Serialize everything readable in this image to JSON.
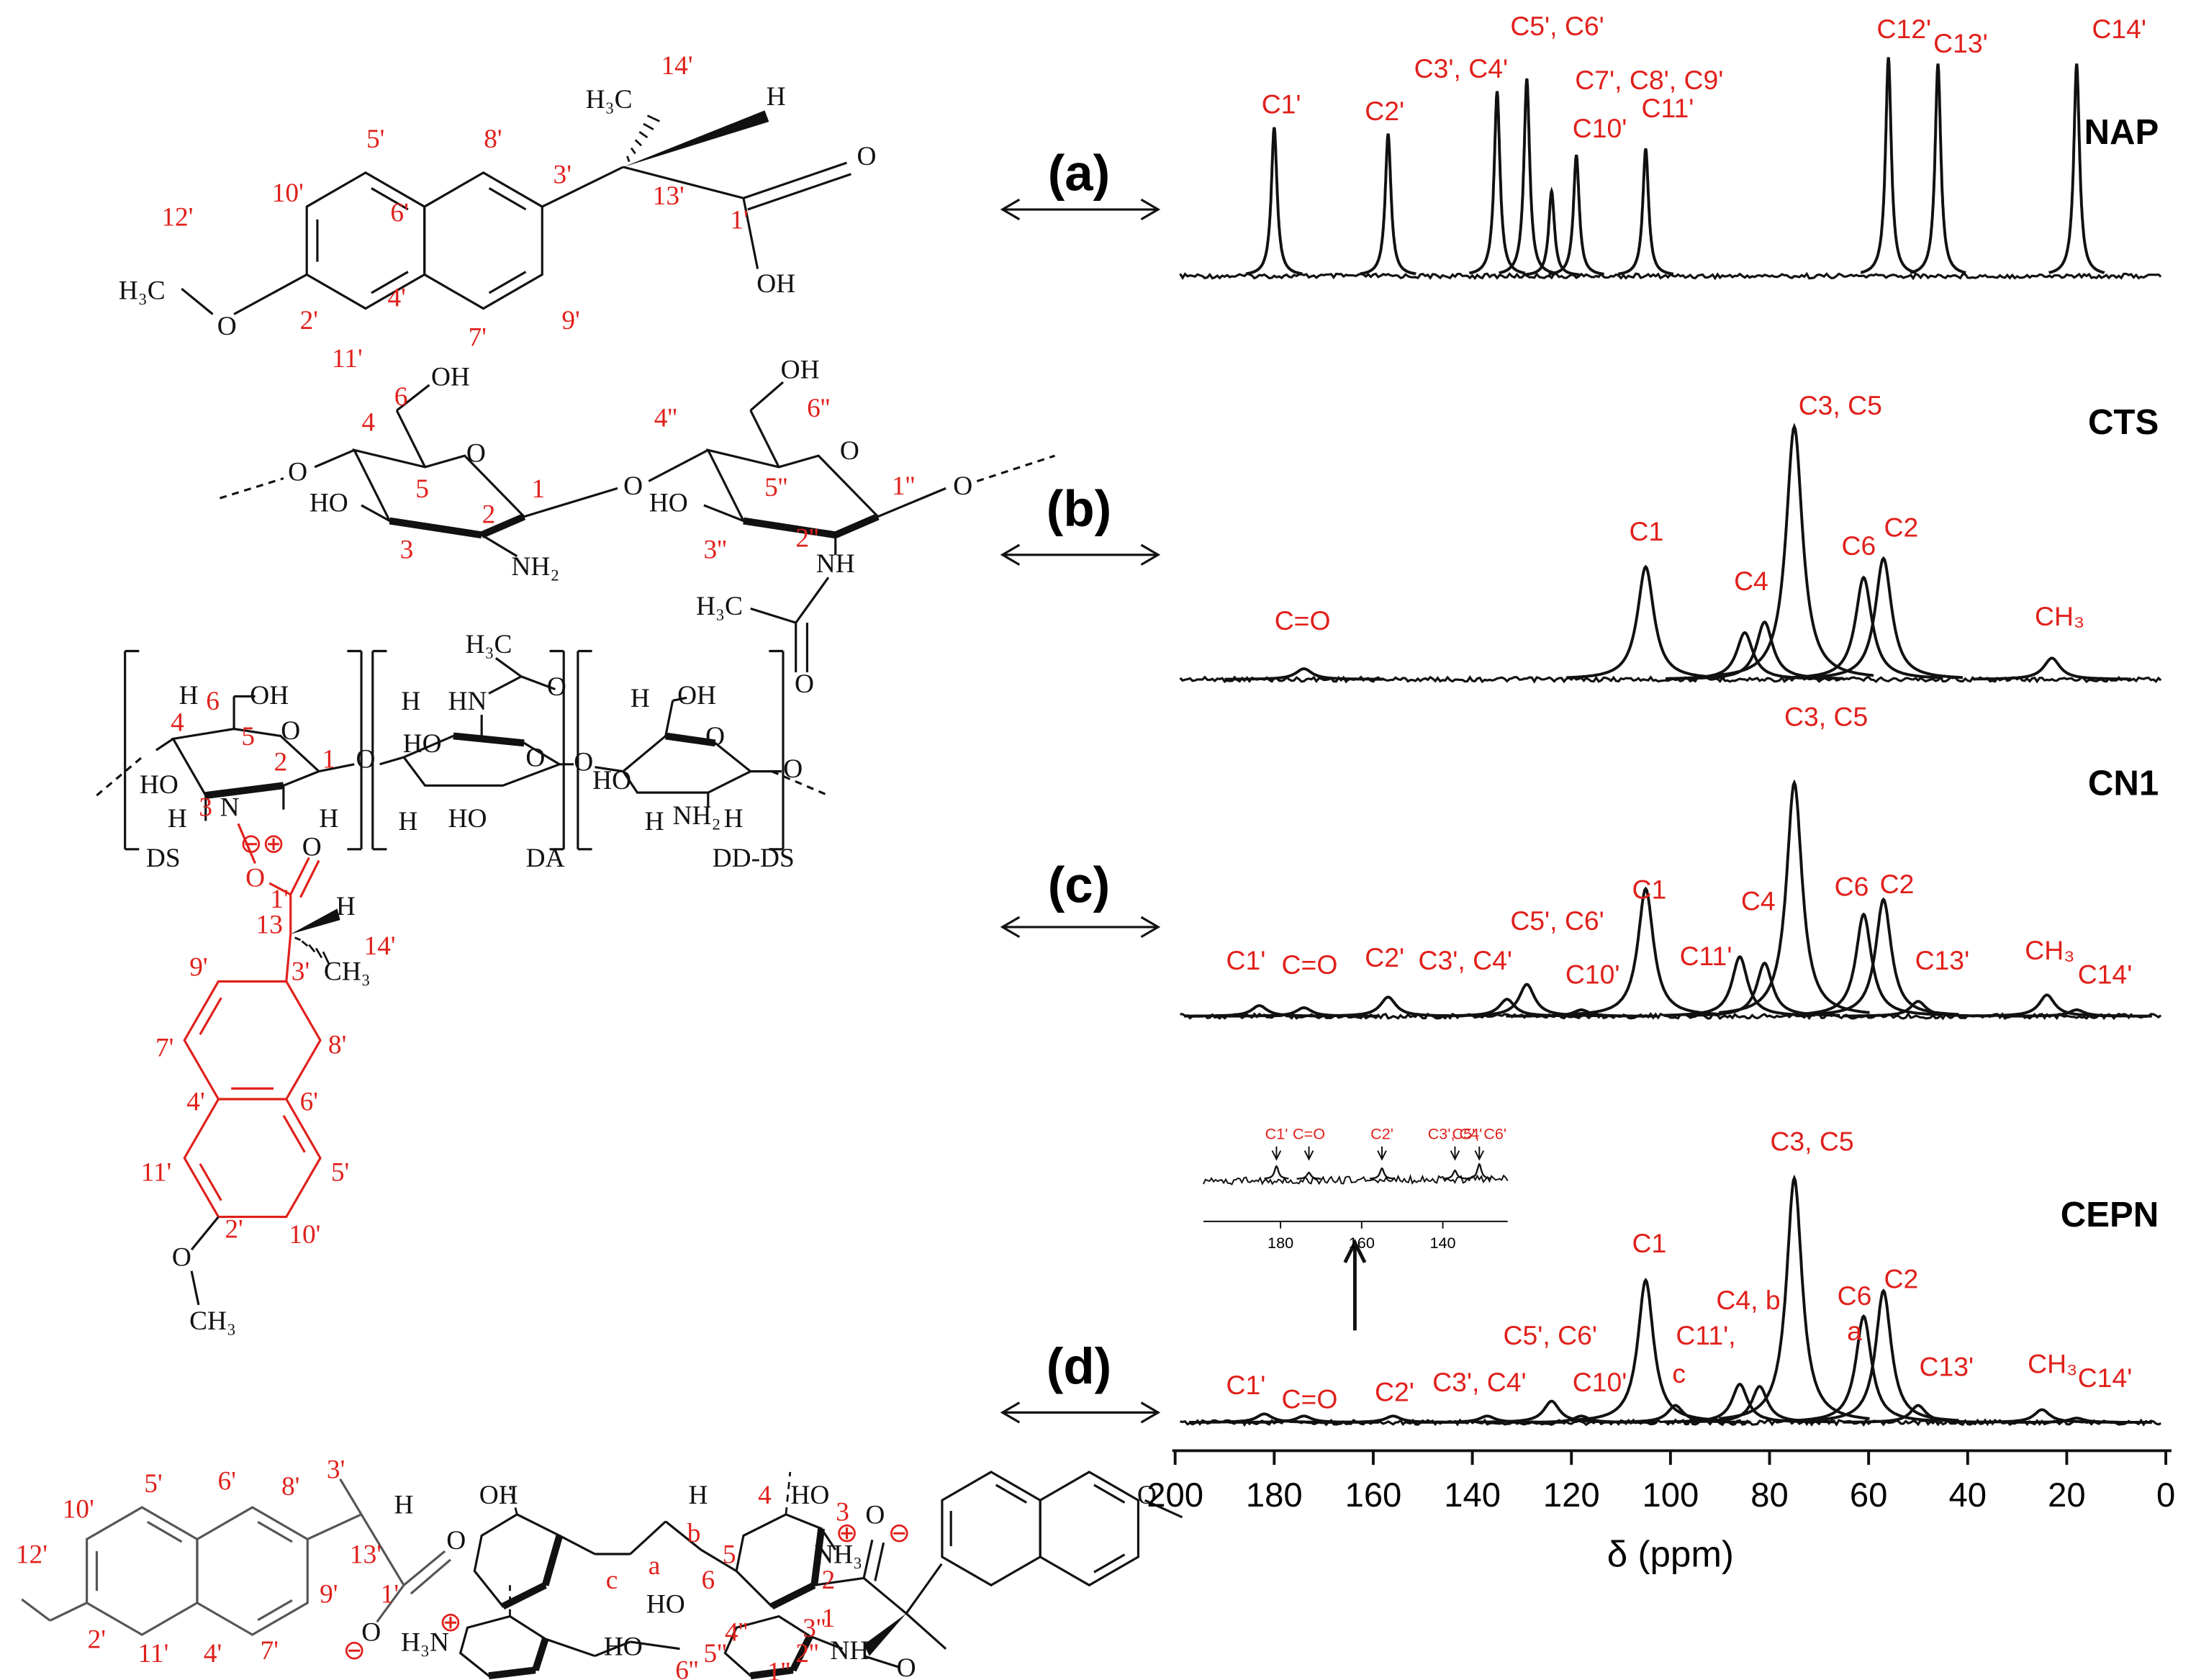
{
  "figure": {
    "panels": [
      {
        "label": "(a)"
      },
      {
        "label": "(b)"
      },
      {
        "label": "(c)"
      },
      {
        "label": "(d)"
      }
    ]
  },
  "structures": {
    "a": [
      "14'",
      "H₃C",
      "H",
      "O",
      "1'",
      "OH",
      "13'",
      "3'",
      "8'",
      "5'",
      "6'",
      "10'",
      "4'",
      "7'",
      "9'",
      "11'",
      "2'",
      "12'",
      "H₃C",
      "O"
    ],
    "b": [
      "O",
      "4",
      "6",
      "OH",
      "O",
      "5",
      "1",
      "HO",
      "3",
      "2",
      "NH₂",
      "O",
      "4''",
      "6''",
      "OH",
      "O",
      "5''",
      "1''",
      "HO",
      "3''",
      "2''",
      "NH",
      "H₃C",
      "O",
      "O"
    ],
    "c": [
      "4",
      "6",
      "OH",
      "5",
      "O",
      "1",
      "2",
      "3",
      "HO",
      "H",
      "N",
      "H",
      "H",
      "O",
      "HN",
      "H₃C",
      "O",
      "H",
      "HO",
      "H",
      "HO",
      "O",
      "O",
      "H",
      "OH",
      "O",
      "HO",
      "H",
      "NH₂",
      "H",
      "O",
      "DS",
      "DA",
      "DD-DS",
      "⊖⊕",
      "O",
      "O",
      "1'",
      "13",
      "H",
      "14'",
      "CH₃",
      "3'",
      "9'",
      "7'",
      "8'",
      "4'",
      "6'",
      "11'",
      "5'",
      "2'",
      "10'",
      "O",
      "CH₃"
    ],
    "d": [
      "10'",
      "5'",
      "6'",
      "8'",
      "3'",
      "12'",
      "13'",
      "H",
      "1'",
      "O",
      "O",
      "⊖",
      "H₃N",
      "⊕",
      "9'",
      "7'",
      "4'",
      "11'",
      "2'",
      "OH",
      "H",
      "b",
      "a",
      "c",
      "HO",
      "4",
      "HO",
      "3",
      "⊕",
      "NH₃",
      "⊖",
      "5",
      "6",
      "2",
      "1",
      "O",
      "4''",
      "3''",
      "5''",
      "2''",
      "6''",
      "1''",
      "HO",
      "NH",
      "O",
      "O"
    ]
  },
  "chart_data": {
    "type": "spectrum",
    "xlabel": "δ (ppm)",
    "xlim": [
      200,
      0
    ],
    "xticks": [
      200,
      180,
      160,
      140,
      120,
      100,
      80,
      60,
      40,
      20,
      0
    ],
    "grid": false,
    "series": [
      {
        "name": "NAP",
        "x": [
          180,
          157,
          135,
          129,
          124,
          119,
          105,
          56,
          46,
          18
        ],
        "values": [
          70,
          67,
          87,
          93,
          40,
          57,
          60,
          103,
          100,
          100
        ],
        "peak_labels": [
          "C1'",
          "C2'",
          "C3', C4'",
          "C5', C6'",
          "C7', C8', C9'",
          "C10'",
          "C11'",
          "C12'",
          "C13'",
          "C14'"
        ]
      },
      {
        "name": "CTS",
        "x": [
          174,
          105,
          85,
          81,
          75,
          61,
          57,
          23
        ],
        "values": [
          5,
          53,
          22,
          27,
          119,
          48,
          57,
          10
        ],
        "peak_labels": [
          "C=O",
          "C1",
          null,
          "C4",
          "C3, C5",
          "C6",
          "C2",
          "CH₃"
        ]
      },
      {
        "name": "CN1",
        "x": [
          183,
          174,
          157,
          133,
          129,
          118,
          105,
          86,
          81,
          75,
          61,
          57,
          50,
          24,
          18
        ],
        "values": [
          5,
          4,
          9,
          8,
          15,
          3,
          60,
          28,
          25,
          110,
          48,
          55,
          7,
          10,
          3
        ],
        "peak_labels": [
          "C1'",
          "C=O",
          "C2'",
          "C3', C4'",
          "C5', C6'",
          "C10'",
          "C1",
          "C11'",
          "C4",
          "C3, C5",
          "C6",
          "C2",
          "C13'",
          "CH₃",
          "C14'"
        ]
      },
      {
        "name": "CEPN",
        "x": [
          182,
          174,
          156,
          137,
          124,
          118,
          105,
          99,
          86,
          82,
          75,
          61,
          57,
          50,
          25,
          18
        ],
        "values": [
          4,
          3,
          3,
          3,
          10,
          3,
          67,
          8,
          18,
          17,
          115,
          50,
          62,
          8,
          6,
          2
        ],
        "peak_labels": [
          "C1'",
          "C=O",
          "C2'",
          "C3', C4'",
          "C5', C6'",
          "C10'",
          "C1",
          "C11',",
          null,
          "C4, b",
          "C3, C5",
          "C6",
          "C2",
          "C13'",
          "CH₃",
          "C14'"
        ],
        "annotations": [
          "c",
          "a"
        ]
      }
    ],
    "inset": {
      "xlim": [
        199,
        124
      ],
      "xticks": [
        180,
        160,
        140
      ],
      "x": [
        181,
        173,
        155,
        137,
        131
      ],
      "values": [
        6,
        3,
        5,
        4,
        7
      ],
      "peak_labels": [
        "C1'",
        "C=O",
        "C2'",
        "C3', C4'",
        "C5', C6'"
      ]
    }
  }
}
